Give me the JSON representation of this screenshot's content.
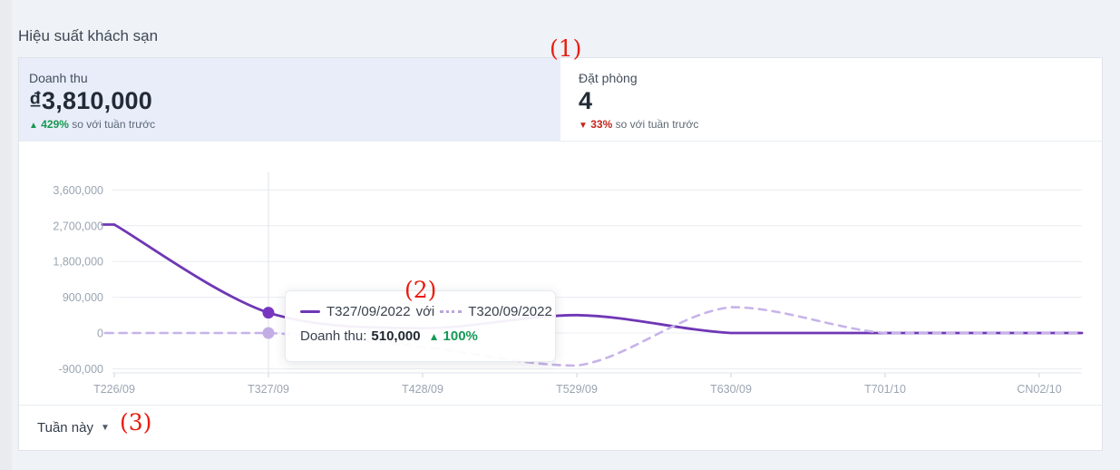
{
  "page": {
    "title": "Hiệu suất khách sạn"
  },
  "kpi": {
    "revenue": {
      "label": "Doanh thu",
      "value": "₫3,810,000",
      "change_arrow": "▲",
      "change": "429%",
      "compare": "so với tuần trước",
      "trend": "up"
    },
    "bookings": {
      "label": "Đặt phòng",
      "value": "4",
      "change_arrow": "▼",
      "change": "33%",
      "compare": "so với tuần trước",
      "trend": "down"
    }
  },
  "tooltip": {
    "series_a": "T327/09/2022",
    "connector": "với",
    "series_b": "T320/09/2022",
    "metric": "Doanh thu:",
    "value": "510,000",
    "arrow": "▲",
    "change": "100%"
  },
  "footer": {
    "range_label": "Tuần này"
  },
  "icons": {
    "dropdown_caret": "▼"
  },
  "annotations": [
    "(1)",
    "(2)",
    "(3)"
  ],
  "colors": {
    "accent_purple": "#6f37b5",
    "accent_purple_dot": "#7836c0",
    "light_purple": "#c7b3e9",
    "light_purple_dot": "#c3ade5",
    "green": "#18984f",
    "red": "#c3261c",
    "annotation_red": "#ea1b0e",
    "selected_card_bg": "#e9edfa",
    "grid_line": "#e9ecf0",
    "axis_label": "#9aa5b2"
  },
  "chart_data": {
    "type": "line",
    "title": "",
    "xlabel": "",
    "ylabel": "",
    "categories": [
      "T226/09",
      "T327/09",
      "T428/09",
      "T529/09",
      "T630/09",
      "T701/10",
      "CN02/10"
    ],
    "y_axis": {
      "tick_labels": [
        "3,600,000",
        "2,700,000",
        "1,800,000",
        "900,000",
        "0",
        "-900,000"
      ],
      "tick_values": [
        3600000,
        2700000,
        1800000,
        900000,
        0,
        -900000
      ]
    },
    "ylim": [
      -900000,
      3600000
    ],
    "grid": true,
    "legend_position": "none",
    "series": [
      {
        "name": "Tuần này",
        "style": "solid",
        "color": "#6f37b5",
        "values": [
          2730000,
          510000,
          120000,
          450000,
          0,
          0,
          0
        ]
      },
      {
        "name": "Tuần trước",
        "style": "dashed",
        "color": "#c7b3e9",
        "values": [
          0,
          0,
          -350000,
          -820000,
          650000,
          0,
          0
        ]
      }
    ],
    "highlight": {
      "category_index": 1,
      "category": "T327/09",
      "this_week_value": 510000,
      "last_week_value": 0
    }
  }
}
